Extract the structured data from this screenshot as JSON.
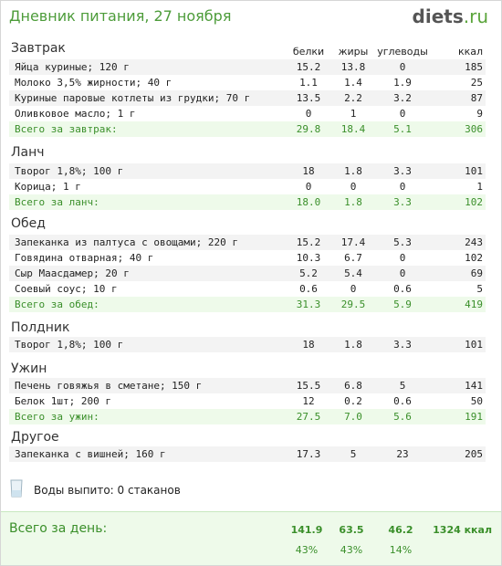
{
  "header": {
    "title": "Дневник питания, 27 ноября",
    "logo_main": "diets",
    "logo_suffix": ".ru"
  },
  "columns": {
    "protein": "белки",
    "fat": "жиры",
    "carbs": "углеводы",
    "kcal": "ккал"
  },
  "sections": [
    {
      "title": "Завтрак",
      "items": [
        {
          "name": "Яйца куриные; 120 г",
          "protein": "15.2",
          "fat": "13.8",
          "carbs": "0",
          "kcal": "185"
        },
        {
          "name": "Молоко 3,5% жирности; 40 г",
          "protein": "1.1",
          "fat": "1.4",
          "carbs": "1.9",
          "kcal": "25"
        },
        {
          "name": "Куриные паровые котлеты из грудки; 70 г",
          "protein": "13.5",
          "fat": "2.2",
          "carbs": "3.2",
          "kcal": "87"
        },
        {
          "name": "Оливковое масло; 1 г",
          "protein": "0",
          "fat": "1",
          "carbs": "0",
          "kcal": "9"
        }
      ],
      "total": {
        "name": "Всего за завтрак:",
        "protein": "29.8",
        "fat": "18.4",
        "carbs": "5.1",
        "kcal": "306"
      }
    },
    {
      "title": "Ланч",
      "items": [
        {
          "name": "Творог 1,8%; 100 г",
          "protein": "18",
          "fat": "1.8",
          "carbs": "3.3",
          "kcal": "101"
        },
        {
          "name": "Корица; 1 г",
          "protein": "0",
          "fat": "0",
          "carbs": "0",
          "kcal": "1"
        }
      ],
      "total": {
        "name": "Всего за ланч:",
        "protein": "18.0",
        "fat": "1.8",
        "carbs": "3.3",
        "kcal": "102"
      }
    },
    {
      "title": "Обед",
      "items": [
        {
          "name": "Запеканка из палтуса с овощами; 220 г",
          "protein": "15.2",
          "fat": "17.4",
          "carbs": "5.3",
          "kcal": "243"
        },
        {
          "name": "Говядина отварная; 40 г",
          "protein": "10.3",
          "fat": "6.7",
          "carbs": "0",
          "kcal": "102"
        },
        {
          "name": "Сыр Маасдамер; 20 г",
          "protein": "5.2",
          "fat": "5.4",
          "carbs": "0",
          "kcal": "69"
        },
        {
          "name": "Соевый соус; 10 г",
          "protein": "0.6",
          "fat": "0",
          "carbs": "0.6",
          "kcal": "5"
        }
      ],
      "total": {
        "name": "Всего за обед:",
        "protein": "31.3",
        "fat": "29.5",
        "carbs": "5.9",
        "kcal": "419"
      }
    },
    {
      "title": "Полдник",
      "items": [
        {
          "name": "Творог 1,8%; 100 г",
          "protein": "18",
          "fat": "1.8",
          "carbs": "3.3",
          "kcal": "101"
        }
      ],
      "total": null
    },
    {
      "title": "Ужин",
      "items": [
        {
          "name": "Печень говяжья в сметане; 150 г",
          "protein": "15.5",
          "fat": "6.8",
          "carbs": "5",
          "kcal": "141"
        },
        {
          "name": "Белок 1шт; 200 г",
          "protein": "12",
          "fat": "0.2",
          "carbs": "0.6",
          "kcal": "50"
        }
      ],
      "total": {
        "name": "Всего за ужин:",
        "protein": "27.5",
        "fat": "7.0",
        "carbs": "5.6",
        "kcal": "191"
      }
    },
    {
      "title": "Другое",
      "items": [
        {
          "name": "Запеканка с вишней; 160 г",
          "protein": "17.3",
          "fat": "5",
          "carbs": "23",
          "kcal": "205"
        }
      ],
      "total": null
    }
  ],
  "water": {
    "text": "Воды выпито: 0 стаканов",
    "icon": "glass-icon"
  },
  "day_total": {
    "label": "Всего за день:",
    "protein": "141.9",
    "fat": "63.5",
    "carbs": "46.2",
    "kcal": "1324 ккал",
    "protein_pct": "43%",
    "fat_pct": "43%",
    "carbs_pct": "14%"
  },
  "colors": {
    "accent": "#4d9c3a",
    "total_bg": "#eefaea",
    "row_alt": "#f3f3f3"
  }
}
